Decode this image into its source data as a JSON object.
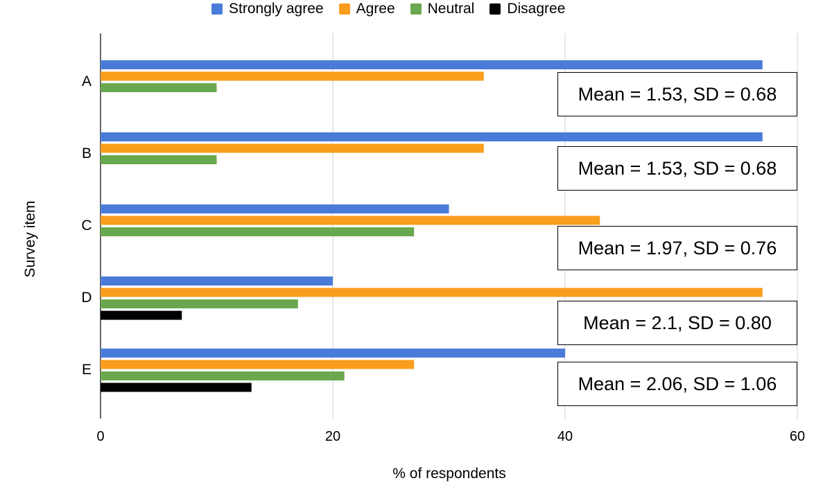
{
  "chart_data": {
    "type": "bar",
    "orientation": "horizontal",
    "categories": [
      "A",
      "B",
      "C",
      "D",
      "E"
    ],
    "series": [
      {
        "name": "Strongly agree",
        "color": "#4a7bd8",
        "values": [
          57,
          57,
          30,
          20,
          40
        ]
      },
      {
        "name": "Agree",
        "color": "#f99d1c",
        "values": [
          33,
          33,
          43,
          57,
          27
        ]
      },
      {
        "name": "Neutral",
        "color": "#6aa84f",
        "values": [
          10,
          10,
          27,
          17,
          21
        ]
      },
      {
        "name": "Disagree",
        "color": "#000000",
        "values": [
          0,
          0,
          0,
          7,
          13
        ]
      }
    ],
    "xlabel": "% of respondents",
    "ylabel": "Survey item",
    "xlim": [
      0,
      60
    ],
    "xticks": [
      "0",
      "20",
      "40",
      "60"
    ],
    "grid": true,
    "legend": "top-center",
    "annotations": [
      "Mean = 1.53, SD = 0.68",
      "Mean = 1.53, SD = 0.68",
      "Mean = 1.97, SD = 0.76",
      "Mean = 2.1, SD = 0.80",
      "Mean = 2.06, SD = 1.06"
    ]
  }
}
